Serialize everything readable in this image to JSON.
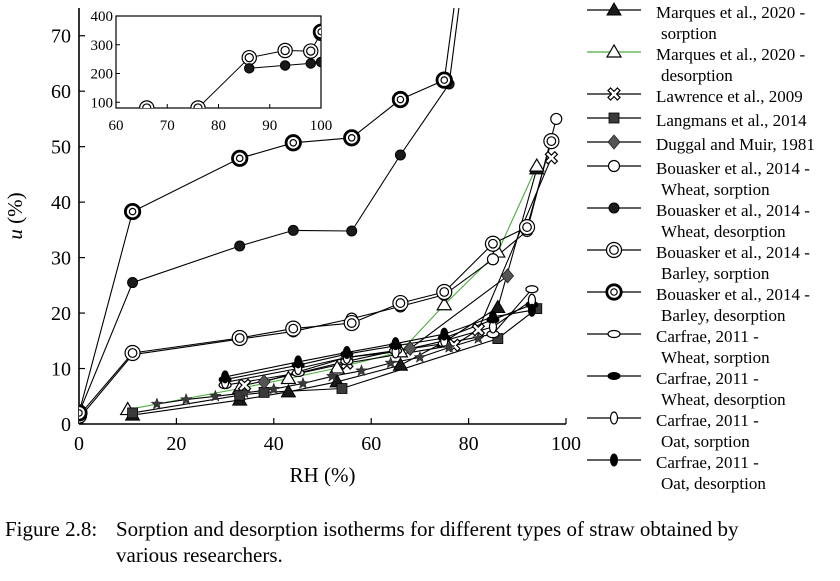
{
  "figure": {
    "caption_label": "Figure 2.8:",
    "caption_line1": "Sorption and desorption isotherms for different types of straw obtained by",
    "caption_line2": "various researchers."
  },
  "chart_data": {
    "type": "line",
    "xlabel": "RH (%)",
    "ylabel": "u (%)",
    "xlim": [
      0,
      100
    ],
    "ylim": [
      0,
      75
    ],
    "xticks": [
      0,
      20,
      40,
      60,
      80,
      100
    ],
    "yticks": [
      0,
      10,
      20,
      30,
      40,
      50,
      60,
      70
    ],
    "legend_position": "right",
    "series": [
      {
        "label_line1": "Marques et al., 2020 -",
        "label_line2": "sorption",
        "marker": "triangle-filled",
        "line_color": "#000000",
        "x": [
          11,
          33,
          43,
          53,
          66,
          75,
          86,
          94
        ],
        "y": [
          1.6,
          4.3,
          5.8,
          7.6,
          10.6,
          14.8,
          21.0,
          46.0
        ]
      },
      {
        "label_line1": "Marques et al., 2020 -",
        "label_line2": "desorption",
        "marker": "triangle-open",
        "line_color": "#4caf3f",
        "x": [
          10,
          33,
          43,
          53,
          66,
          75,
          86,
          94
        ],
        "y": [
          2.6,
          6.4,
          8.2,
          10.1,
          13.0,
          21.5,
          31.0,
          46.5
        ]
      },
      {
        "label_line1": "Lawrence et al., 2009",
        "label_line2": "",
        "marker": "cross",
        "x": [
          34,
          55,
          77,
          82,
          97
        ],
        "y": [
          7.0,
          11.0,
          14.2,
          17.0,
          48.0
        ]
      },
      {
        "label_line1": "Langmans et al., 2014",
        "label_line2": "",
        "marker": "square",
        "x": [
          11,
          33,
          38,
          54,
          86,
          94
        ],
        "y": [
          2.0,
          5.2,
          5.7,
          6.4,
          15.4,
          20.8
        ]
      },
      {
        "label_line1": "Duggal and Muir, 1981",
        "label_line2": "",
        "marker": "diamond",
        "x": [
          38,
          55,
          68,
          88
        ],
        "y": [
          7.6,
          12.0,
          13.6,
          26.7
        ]
      },
      {
        "label_line1": "Bouasker et al., 2014 -",
        "label_line2": "Wheat, sorption",
        "marker": "circle-open",
        "x": [
          0,
          11,
          33,
          44,
          56,
          66,
          75,
          85,
          92,
          98
        ],
        "y": [
          1.0,
          12.5,
          15.3,
          16.7,
          19.0,
          21.2,
          23.3,
          29.7,
          34.8,
          55.0
        ]
      },
      {
        "label_line1": "Bouasker et al., 2014 -",
        "label_line2": "Wheat, desorption",
        "marker": "circle-filled",
        "x": [
          0,
          11,
          33,
          44,
          56,
          66,
          76,
          78
        ],
        "y": [
          2.0,
          25.5,
          32.1,
          34.9,
          34.8,
          48.5,
          61.3,
          75
        ]
      },
      {
        "label_line1": "Bouasker et al., 2014 -",
        "label_line2": "Barley, sorption",
        "marker": "circle-double",
        "x": [
          0,
          11,
          33,
          44,
          56,
          66,
          75,
          85,
          92,
          97
        ],
        "y": [
          1.5,
          12.8,
          15.5,
          17.2,
          18.2,
          21.8,
          23.8,
          32.5,
          35.5,
          51.0
        ]
      },
      {
        "label_line1": "Bouasker et al., 2014 -",
        "label_line2": "Barley, desorption",
        "marker": "circle-bold",
        "x": [
          0,
          11,
          33,
          44,
          56,
          66,
          75,
          77
        ],
        "y": [
          2.0,
          38.3,
          47.9,
          50.7,
          51.6,
          58.5,
          62.0,
          75
        ]
      },
      {
        "label_line1": "Carfrae, 2011 -",
        "label_line2": "Wheat, sorption",
        "marker": "ellipse-h-open",
        "x": [
          30,
          45,
          55,
          65,
          75,
          85,
          93
        ],
        "y": [
          7.0,
          9.2,
          11.3,
          13.2,
          14.5,
          16.2,
          24.3
        ]
      },
      {
        "label_line1": "Carfrae, 2011 -",
        "label_line2": "Wheat, desorption",
        "marker": "ellipse-h-filled",
        "x": [
          30,
          45,
          55,
          65,
          75,
          85,
          93
        ],
        "y": [
          8.0,
          10.6,
          12.6,
          14.1,
          15.5,
          18.8,
          21.5
        ]
      },
      {
        "label_line1": "Carfrae, 2011 -",
        "label_line2": "Oat, sorption",
        "marker": "ellipse-v-open",
        "x": [
          30,
          45,
          55,
          65,
          75,
          85,
          93
        ],
        "y": [
          7.5,
          10.0,
          12.0,
          13.0,
          15.0,
          17.5,
          22.3
        ]
      },
      {
        "label_line1": "Carfrae, 2011 -",
        "label_line2": "Oat, desorption",
        "marker": "ellipse-v-filled",
        "x": [
          30,
          45,
          55,
          65,
          75,
          85,
          93
        ],
        "y": [
          8.5,
          11.2,
          12.9,
          14.5,
          16.2,
          19.3,
          20.5
        ]
      }
    ],
    "extra_marks": {
      "marker": "star",
      "x": [
        16,
        22,
        28,
        34,
        40,
        46,
        52,
        58,
        64,
        70,
        76,
        82
      ],
      "y": [
        3.6,
        4.4,
        5.0,
        5.6,
        6.3,
        7.3,
        8.6,
        9.6,
        11.0,
        12.0,
        13.8,
        15.4
      ]
    },
    "inset": {
      "xlim": [
        60,
        100
      ],
      "ylim": [
        80,
        400
      ],
      "xticks": [
        60,
        70,
        80,
        90,
        100
      ],
      "yticks": [
        100,
        200,
        300,
        400
      ],
      "series": [
        {
          "marker": "circle-double",
          "x": [
            66,
            76,
            86,
            93,
            98,
            100
          ],
          "y": [
            80,
            80,
            255,
            280,
            278,
            340
          ]
        },
        {
          "marker": "circle-filled",
          "x": [
            86,
            93,
            98,
            100
          ],
          "y": [
            218,
            228,
            235,
            240
          ]
        },
        {
          "marker": "circle-bold",
          "x": [
            100
          ],
          "y": [
            345
          ]
        }
      ]
    }
  }
}
